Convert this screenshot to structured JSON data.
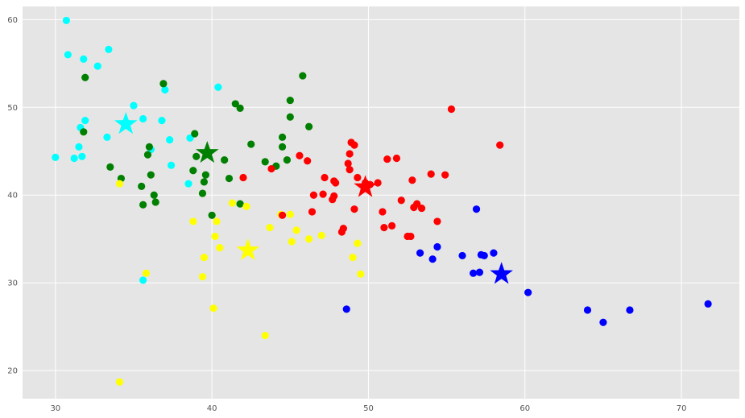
{
  "chart_data": {
    "type": "scatter",
    "title": "",
    "xlabel": "",
    "ylabel": "",
    "xlim": [
      27.9,
      73.7
    ],
    "ylim": [
      16.8,
      61.5
    ],
    "xticks": [
      30,
      40,
      50,
      60,
      70
    ],
    "yticks": [
      20,
      30,
      40,
      50,
      60
    ],
    "grid": true,
    "background_color": "#e5e5e5",
    "grid_color": "#ffffff",
    "series": [
      {
        "color": "#00ffff",
        "points": [
          [
            30.7,
            59.9
          ],
          [
            30.8,
            56.0
          ],
          [
            31.8,
            55.5
          ],
          [
            32.7,
            54.7
          ],
          [
            33.4,
            56.6
          ],
          [
            30.0,
            44.3
          ],
          [
            31.2,
            44.2
          ],
          [
            31.7,
            44.4
          ],
          [
            31.5,
            45.5
          ],
          [
            31.6,
            47.7
          ],
          [
            31.9,
            48.5
          ],
          [
            33.3,
            46.6
          ],
          [
            35.0,
            50.2
          ],
          [
            35.6,
            48.7
          ],
          [
            36.1,
            45.2
          ],
          [
            36.8,
            48.5
          ],
          [
            37.0,
            52.0
          ],
          [
            37.3,
            46.3
          ],
          [
            37.4,
            43.4
          ],
          [
            38.5,
            41.3
          ],
          [
            38.6,
            46.5
          ],
          [
            40.4,
            52.3
          ],
          [
            35.6,
            30.3
          ]
        ],
        "centroid": [
          34.5,
          48.1
        ]
      },
      {
        "color": "#008000",
        "points": [
          [
            31.9,
            53.4
          ],
          [
            31.8,
            47.2
          ],
          [
            33.5,
            43.2
          ],
          [
            34.2,
            41.9
          ],
          [
            35.5,
            41.0
          ],
          [
            35.6,
            38.9
          ],
          [
            35.9,
            44.6
          ],
          [
            36.0,
            45.5
          ],
          [
            36.1,
            42.3
          ],
          [
            36.3,
            40.0
          ],
          [
            36.4,
            39.2
          ],
          [
            36.9,
            52.7
          ],
          [
            38.8,
            42.8
          ],
          [
            38.9,
            47.0
          ],
          [
            39.0,
            44.4
          ],
          [
            39.4,
            40.2
          ],
          [
            39.5,
            41.5
          ],
          [
            39.6,
            42.3
          ],
          [
            40.0,
            37.7
          ],
          [
            40.8,
            44.0
          ],
          [
            41.1,
            41.9
          ],
          [
            41.5,
            50.4
          ],
          [
            41.8,
            49.9
          ],
          [
            41.8,
            39.0
          ],
          [
            42.5,
            45.8
          ],
          [
            43.4,
            43.8
          ],
          [
            44.1,
            43.3
          ],
          [
            44.5,
            46.6
          ],
          [
            44.5,
            45.5
          ],
          [
            44.8,
            44.0
          ],
          [
            45.0,
            50.8
          ],
          [
            45.0,
            48.9
          ],
          [
            45.8,
            53.6
          ],
          [
            46.2,
            47.8
          ]
        ],
        "centroid": [
          39.7,
          44.8
        ]
      },
      {
        "color": "#ffff00",
        "points": [
          [
            34.1,
            41.3
          ],
          [
            35.8,
            31.1
          ],
          [
            34.1,
            18.7
          ],
          [
            38.8,
            37.0
          ],
          [
            39.4,
            30.7
          ],
          [
            39.5,
            32.9
          ],
          [
            40.1,
            27.1
          ],
          [
            40.2,
            35.3
          ],
          [
            40.3,
            37.0
          ],
          [
            40.5,
            34.0
          ],
          [
            41.3,
            39.1
          ],
          [
            42.2,
            38.7
          ],
          [
            43.4,
            24.0
          ],
          [
            43.7,
            36.3
          ],
          [
            44.4,
            37.8
          ],
          [
            45.0,
            37.8
          ],
          [
            45.1,
            34.7
          ],
          [
            45.4,
            36.0
          ],
          [
            46.2,
            35.0
          ],
          [
            47.0,
            35.4
          ],
          [
            49.0,
            32.9
          ],
          [
            49.3,
            34.5
          ],
          [
            49.5,
            31.0
          ]
        ],
        "centroid": [
          42.3,
          33.7
        ]
      },
      {
        "color": "#ff0000",
        "points": [
          [
            42.0,
            42.0
          ],
          [
            43.8,
            43.0
          ],
          [
            44.5,
            37.7
          ],
          [
            45.6,
            44.5
          ],
          [
            46.1,
            43.9
          ],
          [
            46.4,
            38.1
          ],
          [
            46.5,
            40.0
          ],
          [
            47.1,
            40.1
          ],
          [
            47.2,
            42.0
          ],
          [
            47.7,
            39.5
          ],
          [
            47.8,
            39.9
          ],
          [
            47.8,
            41.6
          ],
          [
            47.9,
            41.4
          ],
          [
            48.3,
            35.8
          ],
          [
            48.4,
            36.2
          ],
          [
            48.7,
            43.6
          ],
          [
            48.8,
            44.7
          ],
          [
            48.8,
            42.9
          ],
          [
            48.9,
            46.0
          ],
          [
            49.1,
            45.7
          ],
          [
            49.1,
            38.4
          ],
          [
            49.3,
            42.0
          ],
          [
            49.8,
            41.4
          ],
          [
            50.1,
            41.2
          ],
          [
            50.6,
            41.4
          ],
          [
            50.9,
            38.1
          ],
          [
            51.0,
            36.3
          ],
          [
            51.2,
            44.1
          ],
          [
            51.5,
            36.5
          ],
          [
            51.8,
            44.2
          ],
          [
            52.1,
            39.4
          ],
          [
            52.5,
            35.3
          ],
          [
            52.7,
            35.3
          ],
          [
            52.8,
            41.7
          ],
          [
            52.9,
            38.6
          ],
          [
            53.1,
            39.0
          ],
          [
            53.4,
            38.5
          ],
          [
            54.0,
            42.4
          ],
          [
            54.4,
            37.0
          ],
          [
            54.9,
            42.3
          ],
          [
            55.3,
            49.8
          ],
          [
            58.4,
            45.7
          ]
        ],
        "centroid": [
          49.8,
          40.9
        ]
      },
      {
        "color": "#0000ff",
        "points": [
          [
            48.6,
            27.0
          ],
          [
            53.3,
            33.4
          ],
          [
            54.1,
            32.7
          ],
          [
            54.4,
            34.1
          ],
          [
            56.0,
            33.1
          ],
          [
            56.7,
            31.1
          ],
          [
            56.9,
            38.4
          ],
          [
            57.1,
            31.2
          ],
          [
            57.2,
            33.2
          ],
          [
            57.4,
            33.1
          ],
          [
            58.0,
            33.4
          ],
          [
            60.2,
            28.9
          ],
          [
            64.0,
            26.9
          ],
          [
            65.0,
            25.5
          ],
          [
            66.7,
            26.9
          ],
          [
            71.7,
            27.6
          ]
        ],
        "centroid": [
          58.5,
          31.0
        ]
      }
    ]
  }
}
